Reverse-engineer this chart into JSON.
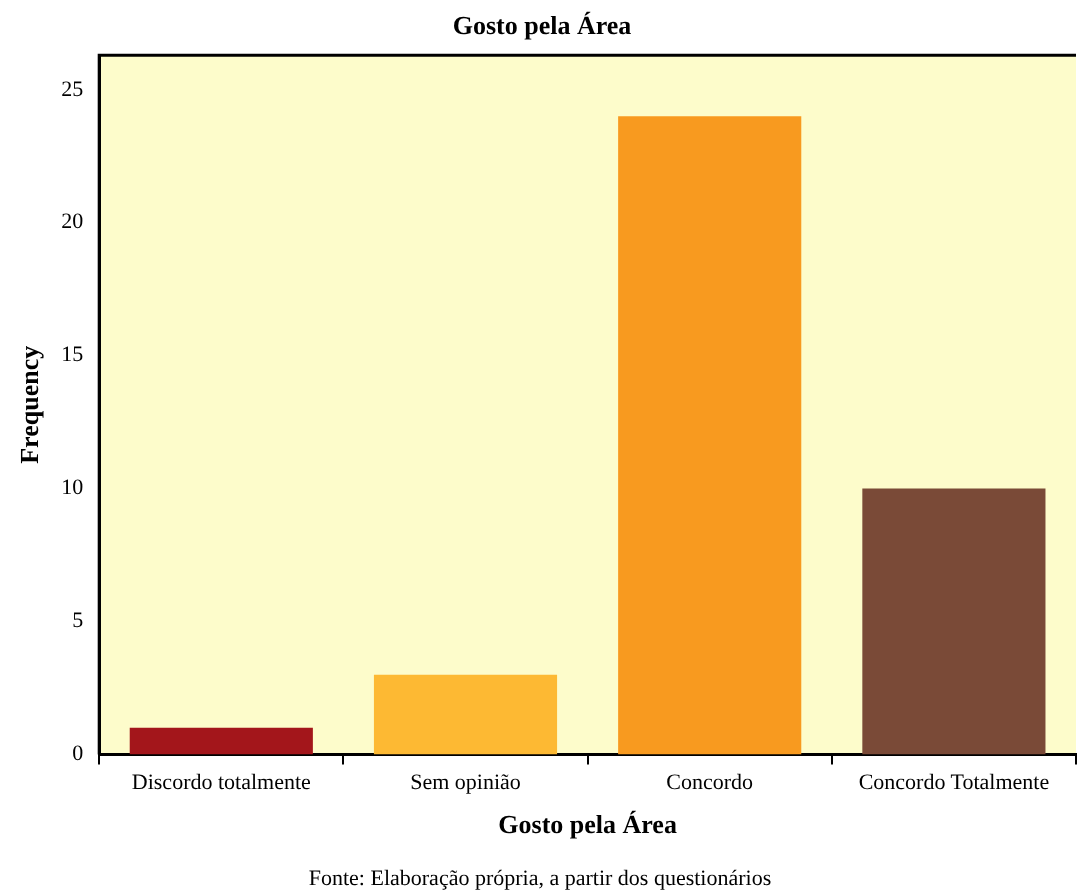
{
  "chart_data": {
    "type": "bar",
    "title": "Gosto pela Área",
    "xlabel": "Gosto pela Área",
    "ylabel": "Frequency",
    "categories": [
      "Discordo totalmente",
      "Sem opinião",
      "Concordo",
      "Concordo Totalmente"
    ],
    "values": [
      1,
      3,
      24,
      10
    ],
    "colors": [
      "#a3161b",
      "#fdb933",
      "#f89a1f",
      "#7a4a37"
    ],
    "ylim": [
      0,
      26.3
    ],
    "yticks": [
      0,
      5,
      10,
      15,
      20,
      25
    ],
    "grid": false,
    "legend": false,
    "annotations": [
      "Fonte: Elaboração própria, a partir dos questionários"
    ]
  }
}
